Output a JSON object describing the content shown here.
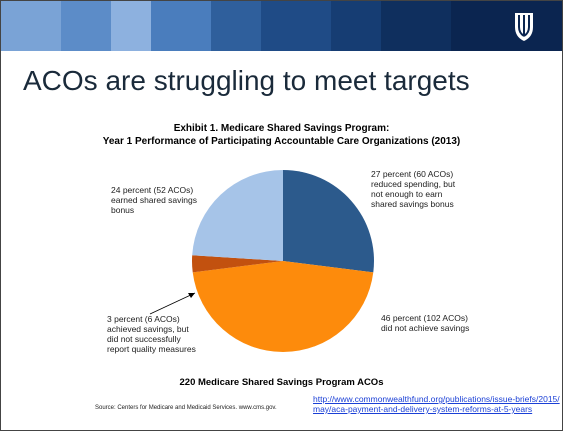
{
  "slide_title": "ACOs are struggling to meet targets",
  "chart_data": {
    "type": "pie",
    "title": "Exhibit 1. Medicare Shared Savings Program:",
    "subtitle": "Year 1 Performance of Participating Accountable Care Organizations (2013)",
    "categories": [
      "27 percent (60 ACOs)\nreduced spending, but\nnot enough to earn\nshared savings bonus",
      "46 percent (102 ACOs)\ndid not achieve savings",
      "3 percent (6 ACOs)\nachieved savings, but\ndid not successfully\nreport quality measures",
      "24 percent (52 ACOs)\nearned shared savings\nbonus"
    ],
    "values": [
      27,
      46,
      3,
      24
    ],
    "colors": [
      "#2c5a8c",
      "#fd8b0c",
      "#c2510f",
      "#a6c4e8"
    ],
    "footer": "220 Medicare Shared Savings Program ACOs"
  },
  "source": "Source: Centers for Medicare and Medicaid Services. www.cms.gov.",
  "link": "http://www.commonwealthfund.org/publications/issue-briefs/2015/\nmay/aca-payment-and-delivery-system-reforms-at-5-years"
}
